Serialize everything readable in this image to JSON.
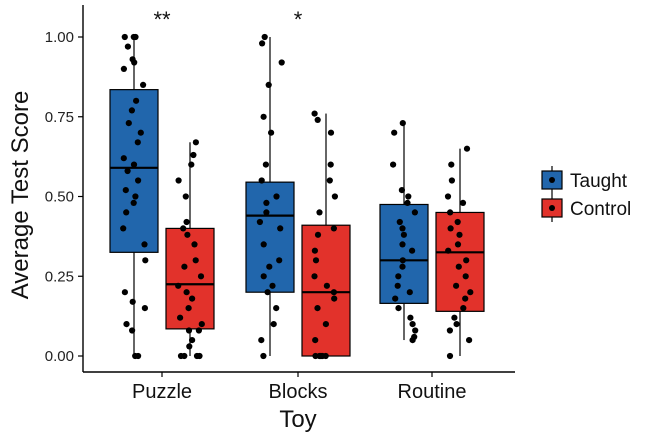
{
  "chart_data": {
    "type": "boxplot",
    "xlabel": "Toy",
    "ylabel": "Average Test Score",
    "ylim": [
      0,
      1.0
    ],
    "yticks": [
      0.0,
      0.25,
      0.5,
      0.75,
      1.0
    ],
    "ytick_labels": [
      "0.00",
      "0.25",
      "0.50",
      "0.75",
      "1.00"
    ],
    "grid": false,
    "legend_position": "right",
    "categories": [
      "Puzzle",
      "Blocks",
      "Routine"
    ],
    "significance": [
      "**",
      "*",
      ""
    ],
    "series": [
      {
        "name": "Taught",
        "color": "#2166ac",
        "boxes": [
          {
            "min": 0.0,
            "q1": 0.325,
            "median": 0.59,
            "q3": 0.835,
            "max": 1.0
          },
          {
            "min": 0.0,
            "q1": 0.2,
            "median": 0.44,
            "q3": 0.545,
            "max": 1.0
          },
          {
            "min": 0.05,
            "q1": 0.165,
            "median": 0.3,
            "q3": 0.475,
            "max": 0.73
          }
        ],
        "points": [
          [
            1.0,
            1.0,
            1.0,
            0.97,
            0.93,
            0.92,
            0.9,
            0.85,
            0.8,
            0.77,
            0.73,
            0.7,
            0.67,
            0.62,
            0.6,
            0.58,
            0.55,
            0.52,
            0.5,
            0.48,
            0.45,
            0.4,
            0.35,
            0.3,
            0.2,
            0.17,
            0.15,
            0.1,
            0.08,
            0.0,
            0.0
          ],
          [
            1.0,
            0.98,
            0.92,
            0.85,
            0.75,
            0.7,
            0.6,
            0.55,
            0.5,
            0.48,
            0.45,
            0.42,
            0.4,
            0.35,
            0.3,
            0.28,
            0.25,
            0.22,
            0.2,
            0.15,
            0.1,
            0.05,
            0.0
          ],
          [
            0.73,
            0.7,
            0.6,
            0.52,
            0.5,
            0.48,
            0.45,
            0.42,
            0.4,
            0.38,
            0.35,
            0.33,
            0.3,
            0.28,
            0.25,
            0.22,
            0.2,
            0.18,
            0.15,
            0.12,
            0.1,
            0.08,
            0.06,
            0.05
          ]
        ]
      },
      {
        "name": "Control",
        "color": "#e2322b",
        "boxes": [
          {
            "min": 0.0,
            "q1": 0.085,
            "median": 0.225,
            "q3": 0.4,
            "max": 0.67
          },
          {
            "min": 0.0,
            "q1": 0.0,
            "median": 0.2,
            "q3": 0.41,
            "max": 0.76
          },
          {
            "min": 0.0,
            "q1": 0.14,
            "median": 0.325,
            "q3": 0.45,
            "max": 0.65
          }
        ],
        "points": [
          [
            0.67,
            0.63,
            0.6,
            0.55,
            0.5,
            0.42,
            0.4,
            0.38,
            0.35,
            0.3,
            0.28,
            0.25,
            0.22,
            0.2,
            0.18,
            0.15,
            0.12,
            0.1,
            0.08,
            0.08,
            0.05,
            0.03,
            0.0,
            0.0,
            0.0,
            0.0
          ],
          [
            0.76,
            0.74,
            0.7,
            0.6,
            0.55,
            0.5,
            0.45,
            0.4,
            0.38,
            0.33,
            0.3,
            0.25,
            0.22,
            0.2,
            0.18,
            0.15,
            0.1,
            0.05,
            0.0,
            0.0,
            0.0,
            0.0,
            0.0,
            0.0
          ],
          [
            0.65,
            0.6,
            0.55,
            0.5,
            0.48,
            0.45,
            0.42,
            0.4,
            0.38,
            0.35,
            0.33,
            0.3,
            0.28,
            0.25,
            0.22,
            0.2,
            0.18,
            0.15,
            0.12,
            0.1,
            0.08,
            0.05,
            0.0
          ]
        ]
      }
    ]
  }
}
